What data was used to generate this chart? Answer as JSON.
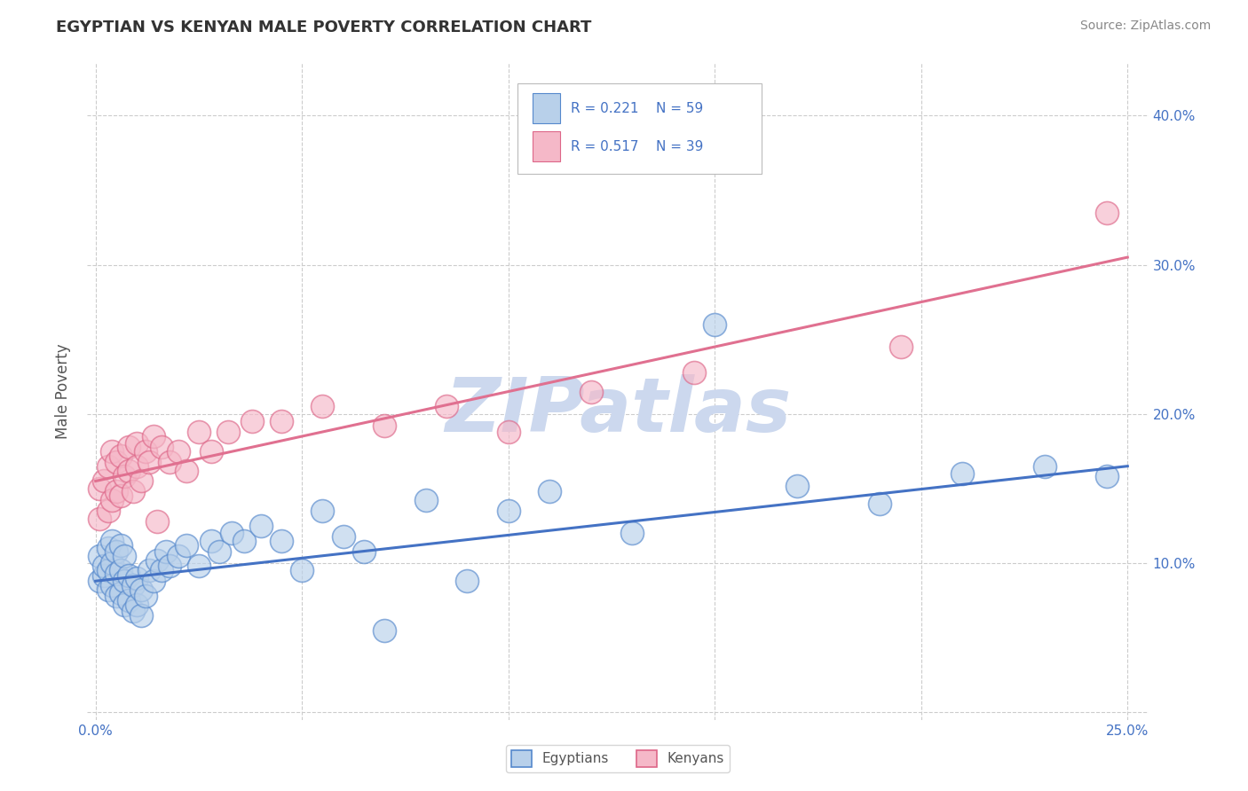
{
  "title": "EGYPTIAN VS KENYAN MALE POVERTY CORRELATION CHART",
  "source_text": "Source: ZipAtlas.com",
  "ylabel": "Male Poverty",
  "watermark": "ZIPatlas",
  "xlim": [
    -0.002,
    0.255
  ],
  "ylim": [
    -0.005,
    0.435
  ],
  "xticks": [
    0.0,
    0.05,
    0.1,
    0.15,
    0.2,
    0.25
  ],
  "yticks": [
    0.0,
    0.1,
    0.2,
    0.3,
    0.4
  ],
  "ytick_labels_right": [
    "",
    "10.0%",
    "20.0%",
    "30.0%",
    "40.0%"
  ],
  "xtick_labels": [
    "0.0%",
    "",
    "",
    "",
    "",
    "25.0%"
  ],
  "legend_r1": "R = 0.221",
  "legend_n1": "N = 59",
  "legend_r2": "R = 0.517",
  "legend_n2": "N = 39",
  "egyptian_fill": "#b8d0ea",
  "kenyan_fill": "#f5b8c8",
  "egyptian_edge": "#5588cc",
  "kenyan_edge": "#dd6688",
  "egyptian_line_color": "#4472c4",
  "kenyan_line_color": "#e07090",
  "title_color": "#333333",
  "axis_label_color": "#555555",
  "tick_color": "#4472c4",
  "grid_color": "#cccccc",
  "background_color": "#ffffff",
  "watermark_color": "#ccd8ee",
  "egyptians_x": [
    0.001,
    0.001,
    0.002,
    0.002,
    0.003,
    0.003,
    0.003,
    0.004,
    0.004,
    0.004,
    0.005,
    0.005,
    0.005,
    0.006,
    0.006,
    0.006,
    0.007,
    0.007,
    0.007,
    0.008,
    0.008,
    0.009,
    0.009,
    0.01,
    0.01,
    0.011,
    0.011,
    0.012,
    0.013,
    0.014,
    0.015,
    0.016,
    0.017,
    0.018,
    0.02,
    0.022,
    0.025,
    0.028,
    0.03,
    0.033,
    0.036,
    0.04,
    0.045,
    0.05,
    0.055,
    0.06,
    0.065,
    0.07,
    0.08,
    0.09,
    0.1,
    0.11,
    0.13,
    0.15,
    0.17,
    0.19,
    0.21,
    0.23,
    0.245
  ],
  "egyptians_y": [
    0.088,
    0.105,
    0.092,
    0.098,
    0.082,
    0.095,
    0.11,
    0.085,
    0.1,
    0.115,
    0.078,
    0.093,
    0.108,
    0.08,
    0.095,
    0.112,
    0.072,
    0.088,
    0.105,
    0.075,
    0.092,
    0.068,
    0.085,
    0.072,
    0.09,
    0.065,
    0.082,
    0.078,
    0.095,
    0.088,
    0.102,
    0.095,
    0.108,
    0.098,
    0.105,
    0.112,
    0.098,
    0.115,
    0.108,
    0.12,
    0.115,
    0.125,
    0.115,
    0.095,
    0.135,
    0.118,
    0.108,
    0.055,
    0.142,
    0.088,
    0.135,
    0.148,
    0.12,
    0.26,
    0.152,
    0.14,
    0.16,
    0.165,
    0.158
  ],
  "kenyans_x": [
    0.001,
    0.001,
    0.002,
    0.003,
    0.003,
    0.004,
    0.004,
    0.005,
    0.005,
    0.006,
    0.006,
    0.007,
    0.008,
    0.008,
    0.009,
    0.01,
    0.01,
    0.011,
    0.012,
    0.013,
    0.014,
    0.015,
    0.016,
    0.018,
    0.02,
    0.022,
    0.025,
    0.028,
    0.032,
    0.038,
    0.045,
    0.055,
    0.07,
    0.085,
    0.1,
    0.12,
    0.145,
    0.195,
    0.245
  ],
  "kenyans_y": [
    0.13,
    0.15,
    0.155,
    0.135,
    0.165,
    0.142,
    0.175,
    0.148,
    0.168,
    0.145,
    0.172,
    0.158,
    0.162,
    0.178,
    0.148,
    0.165,
    0.18,
    0.155,
    0.175,
    0.168,
    0.185,
    0.128,
    0.178,
    0.168,
    0.175,
    0.162,
    0.188,
    0.175,
    0.188,
    0.195,
    0.195,
    0.205,
    0.192,
    0.205,
    0.188,
    0.215,
    0.228,
    0.245,
    0.335
  ],
  "eg_line_x0": 0.0,
  "eg_line_y0": 0.088,
  "eg_line_x1": 0.25,
  "eg_line_y1": 0.165,
  "ke_line_x0": 0.0,
  "ke_line_y0": 0.155,
  "ke_line_x1": 0.25,
  "ke_line_y1": 0.305
}
